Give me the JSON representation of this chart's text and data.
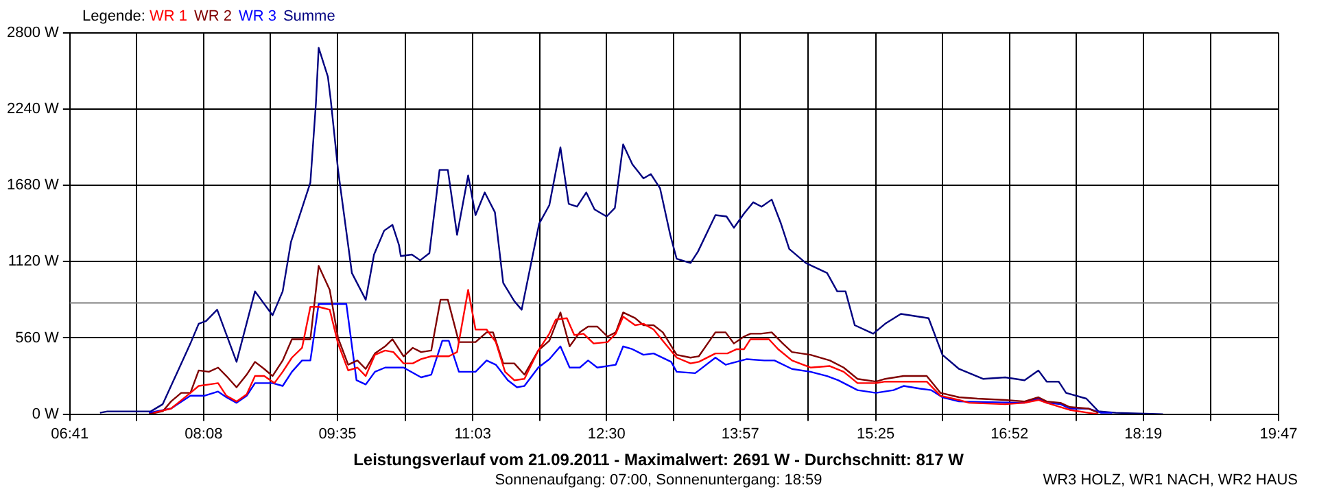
{
  "chart_data": {
    "type": "line",
    "title": "Leistungsverlauf vom 21.09.2011 - Maximalwert: 2691 W - Durchschnitt: 817 W",
    "subtitle": "Sonnenaufgang: 07:00, Sonnenuntergang: 18:59",
    "legend_title": "Legende:",
    "annotations": [
      "WR3 HOLZ, WR1 NACH, WR2 HAUS"
    ],
    "legend": "top left",
    "grid": true,
    "marker": "none",
    "line_style": "solid",
    "xlim": [
      6.6833,
      19.7833
    ],
    "xticks": [
      {
        "value": 6.6833,
        "label": "06:41"
      },
      {
        "value": 7.4083,
        "label": null
      },
      {
        "value": 8.1333,
        "label": "08:08"
      },
      {
        "value": 8.8583,
        "label": null
      },
      {
        "value": 9.5833,
        "label": "09:35"
      },
      {
        "value": 10.3167,
        "label": null
      },
      {
        "value": 11.05,
        "label": "11:03"
      },
      {
        "value": 11.775,
        "label": null
      },
      {
        "value": 12.5,
        "label": "12:30"
      },
      {
        "value": 13.225,
        "label": null
      },
      {
        "value": 13.95,
        "label": "13:57"
      },
      {
        "value": 14.6833,
        "label": null
      },
      {
        "value": 15.4167,
        "label": "15:25"
      },
      {
        "value": 16.1417,
        "label": null
      },
      {
        "value": 16.8667,
        "label": "16:52"
      },
      {
        "value": 17.5917,
        "label": null
      },
      {
        "value": 18.3167,
        "label": "18:19"
      },
      {
        "value": 19.05,
        "label": null
      },
      {
        "value": 19.7833,
        "label": "19:47"
      }
    ],
    "ylim": [
      0,
      2800
    ],
    "yticks": [
      {
        "value": 0,
        "label": "0 W"
      },
      {
        "value": 560,
        "label": "560 W"
      },
      {
        "value": 1120,
        "label": "1120 W"
      },
      {
        "value": 1680,
        "label": "1680 W"
      },
      {
        "value": 2240,
        "label": "2240 W"
      },
      {
        "value": 2800,
        "label": "2800 W"
      }
    ],
    "ref_lines": [
      {
        "axis": "y",
        "value": 817,
        "color": "#808080"
      }
    ],
    "series": [
      {
        "name": "WR 1",
        "color": "#ff0000",
        "x": [
          7.59,
          7.78,
          7.99,
          8.08,
          8.19,
          8.29,
          8.38,
          8.49,
          8.6,
          8.69,
          8.79,
          8.9,
          8.99,
          9.09,
          9.2,
          9.29,
          9.38,
          9.5,
          9.59,
          9.7,
          9.8,
          9.89,
          9.99,
          10.1,
          10.19,
          10.3,
          10.4,
          10.49,
          10.6,
          10.79,
          10.88,
          11.0,
          11.08,
          11.2,
          11.3,
          11.4,
          11.5,
          11.61,
          11.76,
          11.88,
          11.95,
          12.07,
          12.15,
          12.25,
          12.36,
          12.51,
          12.6,
          12.68,
          12.81,
          12.9,
          13.01,
          13.11,
          13.26,
          13.41,
          13.5,
          13.68,
          13.81,
          13.91,
          13.99,
          14.06,
          14.26,
          14.36,
          14.51,
          14.71,
          14.92,
          15.07,
          15.22,
          15.42,
          15.52,
          15.72,
          15.97,
          16.12,
          16.32,
          16.43,
          16.82,
          17.03,
          17.18,
          17.27,
          17.42,
          17.52,
          17.72,
          17.83
        ],
        "values": [
          10,
          41,
          156,
          207,
          218,
          228,
          135,
          93,
          145,
          280,
          280,
          228,
          311,
          415,
          487,
          788,
          788,
          767,
          519,
          321,
          342,
          280,
          436,
          467,
          456,
          373,
          373,
          404,
          425,
          425,
          456,
          913,
          622,
          622,
          529,
          311,
          249,
          259,
          467,
          591,
          695,
          705,
          581,
          591,
          519,
          529,
          591,
          716,
          653,
          664,
          622,
          539,
          415,
          373,
          384,
          446,
          446,
          477,
          477,
          550,
          550,
          477,
          394,
          342,
          353,
          311,
          228,
          228,
          239,
          239,
          239,
          135,
          104,
          83,
          73,
          83,
          104,
          83,
          52,
          31,
          10,
          0
        ]
      },
      {
        "name": "WR 2",
        "color": "#800000",
        "x": [
          7.54,
          7.69,
          7.78,
          7.89,
          7.99,
          8.08,
          8.19,
          8.29,
          8.38,
          8.49,
          8.6,
          8.69,
          8.79,
          8.88,
          8.99,
          9.09,
          9.29,
          9.38,
          9.5,
          9.59,
          9.7,
          9.8,
          9.89,
          9.99,
          10.1,
          10.18,
          10.3,
          10.4,
          10.49,
          10.6,
          10.7,
          10.78,
          10.9,
          11.08,
          11.2,
          11.27,
          11.38,
          11.5,
          11.61,
          11.76,
          11.88,
          12.0,
          12.1,
          12.21,
          12.3,
          12.4,
          12.51,
          12.6,
          12.68,
          12.81,
          12.9,
          13.01,
          13.11,
          13.26,
          13.41,
          13.5,
          13.68,
          13.79,
          13.88,
          13.99,
          14.06,
          14.17,
          14.29,
          14.41,
          14.51,
          14.71,
          14.92,
          15.07,
          15.22,
          15.42,
          15.52,
          15.72,
          15.97,
          16.12,
          16.32,
          16.52,
          16.82,
          17.03,
          17.18,
          17.27,
          17.42,
          17.52,
          17.72,
          17.83
        ],
        "values": [
          0,
          21,
          93,
          156,
          156,
          321,
          311,
          342,
          280,
          197,
          290,
          384,
          332,
          280,
          394,
          550,
          550,
          1089,
          913,
          560,
          363,
          394,
          332,
          446,
          498,
          550,
          425,
          487,
          456,
          467,
          840,
          840,
          529,
          529,
          601,
          601,
          373,
          373,
          290,
          467,
          539,
          747,
          498,
          601,
          643,
          643,
          570,
          601,
          747,
          705,
          653,
          653,
          601,
          436,
          415,
          425,
          601,
          601,
          519,
          570,
          591,
          591,
          601,
          519,
          456,
          436,
          394,
          342,
          259,
          239,
          259,
          280,
          280,
          156,
          124,
          114,
          104,
          93,
          124,
          93,
          83,
          52,
          41,
          10
        ]
      },
      {
        "name": "WR 3",
        "color": "#0000ff",
        "x": [
          7.54,
          7.78,
          7.99,
          8.14,
          8.29,
          8.38,
          8.49,
          8.6,
          8.69,
          8.88,
          8.99,
          9.09,
          9.2,
          9.29,
          9.38,
          9.68,
          9.79,
          9.89,
          9.99,
          10.1,
          10.3,
          10.49,
          10.6,
          10.72,
          10.79,
          10.9,
          11.08,
          11.2,
          11.3,
          11.43,
          11.53,
          11.61,
          11.76,
          11.88,
          12.0,
          12.1,
          12.21,
          12.3,
          12.4,
          12.6,
          12.68,
          12.78,
          12.9,
          13.01,
          13.2,
          13.26,
          13.46,
          13.5,
          13.68,
          13.79,
          14.02,
          14.21,
          14.32,
          14.51,
          14.71,
          14.89,
          15.01,
          15.22,
          15.42,
          15.61,
          15.72,
          15.9,
          16.02,
          16.14,
          16.32,
          17.03,
          17.18,
          17.27,
          17.42,
          17.52,
          17.72,
          17.86,
          17.98
        ],
        "values": [
          10,
          41,
          135,
          135,
          166,
          124,
          83,
          135,
          228,
          228,
          207,
          311,
          394,
          394,
          809,
          809,
          249,
          218,
          311,
          342,
          342,
          270,
          290,
          539,
          539,
          311,
          311,
          394,
          363,
          249,
          197,
          207,
          342,
          404,
          498,
          342,
          342,
          394,
          342,
          363,
          498,
          477,
          436,
          446,
          384,
          311,
          301,
          321,
          415,
          363,
          404,
          394,
          394,
          332,
          311,
          280,
          249,
          176,
          156,
          176,
          207,
          187,
          176,
          124,
          93,
          83,
          114,
          83,
          73,
          41,
          41,
          10,
          10
        ]
      },
      {
        "name": "Summe",
        "color": "#000080",
        "x": [
          7.01,
          7.09,
          7.56,
          7.69,
          7.99,
          8.08,
          8.16,
          8.28,
          8.49,
          8.69,
          8.88,
          8.99,
          9.08,
          9.29,
          9.35,
          9.38,
          9.48,
          9.51,
          9.59,
          9.74,
          9.89,
          9.98,
          10.09,
          10.18,
          10.25,
          10.27,
          10.39,
          10.48,
          10.58,
          10.69,
          10.78,
          10.88,
          11.0,
          11.08,
          11.18,
          11.29,
          11.38,
          11.5,
          11.58,
          11.77,
          11.88,
          12.0,
          12.09,
          12.18,
          12.28,
          12.37,
          12.5,
          12.59,
          12.68,
          12.78,
          12.9,
          12.98,
          13.08,
          13.19,
          13.26,
          13.41,
          13.49,
          13.68,
          13.8,
          13.88,
          13.99,
          14.09,
          14.18,
          14.29,
          14.39,
          14.48,
          14.66,
          14.89,
          15.0,
          15.09,
          15.19,
          15.39,
          15.52,
          15.69,
          15.99,
          16.14,
          16.32,
          16.58,
          16.82,
          17.03,
          17.18,
          17.27,
          17.4,
          17.48,
          17.7,
          17.83,
          18.02,
          18.53
        ],
        "values": [
          10,
          20,
          20,
          73,
          519,
          664,
          684,
          767,
          384,
          902,
          726,
          902,
          1265,
          1701,
          2281,
          2691,
          2478,
          2313,
          1794,
          1037,
          840,
          1172,
          1348,
          1390,
          1244,
          1161,
          1172,
          1130,
          1182,
          1794,
          1794,
          1317,
          1753,
          1462,
          1628,
          1483,
          964,
          830,
          767,
          1400,
          1535,
          1960,
          1545,
          1524,
          1628,
          1504,
          1452,
          1514,
          1981,
          1835,
          1732,
          1763,
          1659,
          1317,
          1141,
          1110,
          1193,
          1462,
          1452,
          1369,
          1473,
          1556,
          1524,
          1576,
          1400,
          1213,
          1110,
          1037,
          902,
          902,
          653,
          591,
          664,
          736,
          705,
          436,
          332,
          259,
          270,
          249,
          321,
          239,
          239,
          156,
          114,
          21,
          10,
          0
        ]
      }
    ]
  }
}
